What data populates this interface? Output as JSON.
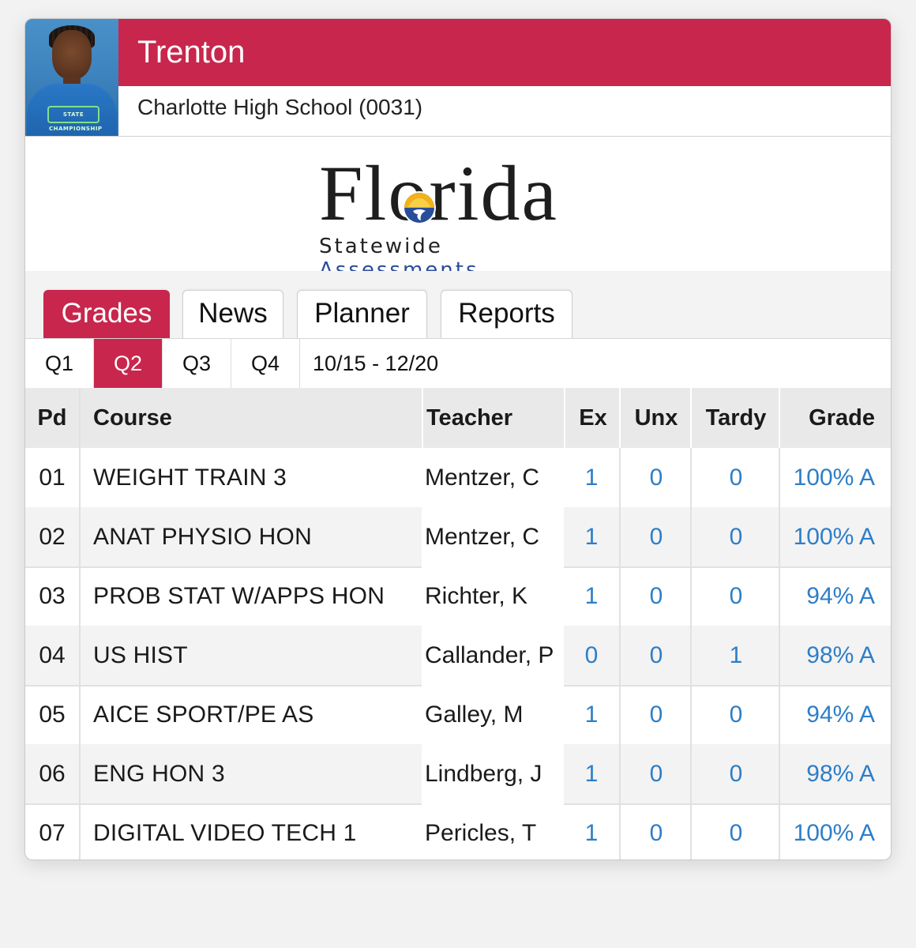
{
  "student": {
    "name": "Trenton",
    "school": "Charlotte High School (0031)",
    "photo_shirt_text": "STATE CHAMPIONSHIP"
  },
  "logo": {
    "word": "Florida",
    "sub_plain": "Statewide",
    "sub_accent": "Assessments"
  },
  "tabs": [
    {
      "label": "Grades",
      "active": true
    },
    {
      "label": "News",
      "active": false
    },
    {
      "label": "Planner",
      "active": false
    },
    {
      "label": "Reports",
      "active": false
    }
  ],
  "quarters": [
    {
      "label": "Q1",
      "active": false
    },
    {
      "label": "Q2",
      "active": true
    },
    {
      "label": "Q3",
      "active": false
    },
    {
      "label": "Q4",
      "active": false
    }
  ],
  "date_range": "10/15 - 12/20",
  "table": {
    "headers": {
      "pd": "Pd",
      "course": "Course",
      "teacher": "Teacher",
      "ex": "Ex",
      "unx": "Unx",
      "tardy": "Tardy",
      "grade": "Grade"
    },
    "rows": [
      {
        "pd": "01",
        "course": "WEIGHT TRAIN 3",
        "teacher": "Mentzer, C",
        "ex": "1",
        "unx": "0",
        "tardy": "0",
        "grade": "100% A"
      },
      {
        "pd": "02",
        "course": "ANAT PHYSIO HON",
        "teacher": "Mentzer, C",
        "ex": "1",
        "unx": "0",
        "tardy": "0",
        "grade": "100% A"
      },
      {
        "pd": "03",
        "course": "PROB STAT W/APPS HON",
        "teacher": "Richter, K",
        "ex": "1",
        "unx": "0",
        "tardy": "0",
        "grade": "94% A"
      },
      {
        "pd": "04",
        "course": "US HIST",
        "teacher": "Callander, P",
        "ex": "0",
        "unx": "0",
        "tardy": "1",
        "grade": "98% A"
      },
      {
        "pd": "05",
        "course": "AICE SPORT/PE AS",
        "teacher": "Galley, M",
        "ex": "1",
        "unx": "0",
        "tardy": "0",
        "grade": "94% A"
      },
      {
        "pd": "06",
        "course": "ENG HON 3",
        "teacher": "Lindberg, J",
        "ex": "1",
        "unx": "0",
        "tardy": "0",
        "grade": "98% A"
      },
      {
        "pd": "07",
        "course": "DIGITAL VIDEO TECH 1",
        "teacher": "Pericles, T",
        "ex": "1",
        "unx": "0",
        "tardy": "0",
        "grade": "100% A"
      }
    ]
  },
  "colors": {
    "accent": "#c8264d",
    "link": "#2e7ec7",
    "logo_blue": "#2a4d9a"
  }
}
